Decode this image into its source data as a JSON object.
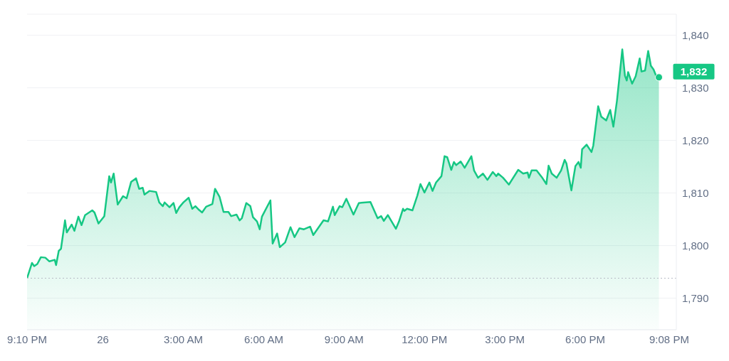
{
  "chart_data": {
    "type": "area",
    "x": [
      "--05-25T21:10",
      "--05-25T21:21",
      "--05-25T21:26",
      "--05-25T21:33",
      "--05-25T21:41",
      "--05-25T21:51",
      "--05-25T22:00",
      "--05-25T22:12",
      "--05-25T22:15",
      "--05-25T22:21",
      "--05-25T22:26",
      "--05-25T22:35",
      "--05-25T22:39",
      "--05-25T22:50",
      "--05-25T22:56",
      "--05-25T23:05",
      "--05-25T23:12",
      "--05-25T23:20",
      "--05-25T23:36",
      "--05-25T23:41",
      "--05-25T23:50",
      "--05-26T00:03",
      "--05-26T00:14",
      "--05-26T00:18",
      "--05-26T00:24",
      "--05-26T00:33",
      "--05-26T00:45",
      "--05-26T00:53",
      "--05-26T01:03",
      "--05-26T01:14",
      "--05-26T01:21",
      "--05-26T01:29",
      "--05-26T01:33",
      "--05-26T01:44",
      "--05-26T01:59",
      "--05-26T02:06",
      "--05-26T02:14",
      "--05-26T02:18",
      "--05-26T02:29",
      "--05-26T02:38",
      "--05-26T02:44",
      "--05-26T02:51",
      "--05-26T03:00",
      "--05-26T03:12",
      "--05-26T03:20",
      "--05-26T03:27",
      "--05-26T03:35",
      "--05-26T03:42",
      "--05-26T03:51",
      "--05-26T04:05",
      "--05-26T04:11",
      "--05-26T04:21",
      "--05-26T04:30",
      "--05-26T04:41",
      "--05-26T04:47",
      "--05-26T04:59",
      "--05-26T05:06",
      "--05-26T05:11",
      "--05-26T05:21",
      "--05-26T05:30",
      "--05-26T05:36",
      "--05-26T05:45",
      "--05-26T05:51",
      "--05-26T05:56",
      "--05-26T06:15",
      "--05-26T06:20",
      "--05-26T06:30",
      "--05-26T06:36",
      "--05-26T06:48",
      "--05-26T07:00",
      "--05-26T07:09",
      "--05-26T07:20",
      "--05-26T07:30",
      "--05-26T07:44",
      "--05-26T07:51",
      "--05-26T08:14",
      "--05-26T08:24",
      "--05-26T08:35",
      "--05-26T08:39",
      "--05-26T08:50",
      "--05-26T08:56",
      "--05-26T09:05",
      "--05-26T09:21",
      "--05-26T09:33",
      "--05-26T09:44",
      "--05-26T09:59",
      "--05-26T10:15",
      "--05-26T10:23",
      "--05-26T10:29",
      "--05-26T10:38",
      "--05-26T10:56",
      "--05-26T11:03",
      "--05-26T11:12",
      "--05-26T11:15",
      "--05-26T11:21",
      "--05-26T11:33",
      "--05-26T11:44",
      "--05-26T11:51",
      "--05-26T12:00",
      "--05-26T12:11",
      "--05-26T12:18",
      "--05-26T12:26",
      "--05-26T12:38",
      "--05-26T12:45",
      "--05-26T12:51",
      "--05-26T13:00",
      "--05-26T13:06",
      "--05-26T13:11",
      "--05-26T13:21",
      "--05-26T13:30",
      "--05-26T13:45",
      "--05-26T13:51",
      "--05-26T14:00",
      "--05-26T14:11",
      "--05-26T14:21",
      "--05-26T14:33",
      "--05-26T14:41",
      "--05-26T14:45",
      "--05-26T14:56",
      "--05-26T15:09",
      "--05-26T15:30",
      "--05-26T15:41",
      "--05-26T15:51",
      "--05-26T15:54",
      "--05-26T16:00",
      "--05-26T16:11",
      "--05-26T16:23",
      "--05-26T16:33",
      "--05-26T16:38",
      "--05-26T16:45",
      "--05-26T16:56",
      "--05-26T17:06",
      "--05-26T17:14",
      "--05-26T17:18",
      "--05-26T17:29",
      "--05-26T17:38",
      "--05-26T17:45",
      "--05-26T17:50",
      "--05-26T17:53",
      "--05-26T18:03",
      "--05-26T18:14",
      "--05-26T18:18",
      "--05-26T18:29",
      "--05-26T18:36",
      "--05-26T18:47",
      "--05-26T18:56",
      "--05-26T19:03",
      "--05-26T19:11",
      "--05-26T19:23",
      "--05-26T19:29",
      "--05-26T19:33",
      "--05-26T19:36",
      "--05-26T19:45",
      "--05-26T19:53",
      "--05-26T20:02",
      "--05-26T20:06",
      "--05-26T20:14",
      "--05-26T20:21",
      "--05-26T20:27",
      "--05-26T20:33",
      "--05-26T20:41",
      "--05-26T20:45"
    ],
    "series": [
      {
        "color": "#16c784",
        "values": [
          1793.8,
          1796.7,
          1796.1,
          1796.5,
          1797.8,
          1797.7,
          1797.0,
          1797.3,
          1796.3,
          1799.0,
          1799.4,
          1804.8,
          1802.5,
          1804.0,
          1802.8,
          1805.5,
          1803.9,
          1805.8,
          1806.7,
          1806.3,
          1804.2,
          1805.6,
          1813.2,
          1812.0,
          1813.7,
          1807.8,
          1809.4,
          1809.0,
          1812.1,
          1812.8,
          1810.8,
          1811.0,
          1809.7,
          1810.4,
          1810.2,
          1808.2,
          1807.5,
          1808.2,
          1807.3,
          1808.1,
          1806.2,
          1807.3,
          1808.2,
          1809.1,
          1807.0,
          1807.5,
          1806.8,
          1806.3,
          1807.4,
          1807.9,
          1810.8,
          1809.3,
          1806.4,
          1806.4,
          1805.6,
          1805.9,
          1804.8,
          1805.2,
          1808.1,
          1807.5,
          1805.4,
          1804.6,
          1803.1,
          1805.5,
          1808.6,
          1800.4,
          1802.3,
          1799.7,
          1800.6,
          1803.5,
          1801.6,
          1803.3,
          1803.1,
          1803.6,
          1802.0,
          1804.8,
          1804.6,
          1807.4,
          1805.8,
          1807.5,
          1807.3,
          1808.9,
          1805.9,
          1808.1,
          1808.2,
          1808.3,
          1805.2,
          1805.6,
          1804.7,
          1805.8,
          1803.2,
          1804.6,
          1807.0,
          1806.6,
          1807.0,
          1806.7,
          1809.5,
          1811.7,
          1810.1,
          1812.0,
          1810.4,
          1812.0,
          1813.2,
          1817.0,
          1816.8,
          1814.4,
          1815.9,
          1815.3,
          1816.0,
          1814.8,
          1817.0,
          1814.3,
          1812.9,
          1813.7,
          1812.5,
          1814.0,
          1813.2,
          1813.7,
          1812.9,
          1811.6,
          1814.4,
          1813.7,
          1813.9,
          1812.9,
          1814.3,
          1814.3,
          1813.0,
          1811.7,
          1815.2,
          1813.7,
          1812.9,
          1814.3,
          1816.3,
          1815.6,
          1810.5,
          1815.1,
          1815.9,
          1814.8,
          1818.3,
          1819.2,
          1817.8,
          1819.0,
          1826.5,
          1824.5,
          1823.8,
          1825.8,
          1822.6,
          1827.5,
          1837.3,
          1832.3,
          1831.4,
          1833.0,
          1830.8,
          1832.2,
          1835.6,
          1833.1,
          1833.3,
          1837.0,
          1834.2,
          1833.5,
          1831.8,
          1832.5
        ]
      }
    ],
    "xlim": [
      "--05-25T21:10",
      "--05-26T21:24"
    ],
    "xticks": [
      {
        "value": "--05-25T21:10",
        "label": "9:10 PM"
      },
      {
        "value": "--05-26T00:00",
        "label": "26"
      },
      {
        "value": "--05-26T03:00",
        "label": "3:00 AM"
      },
      {
        "value": "--05-26T06:00",
        "label": "6:00 AM"
      },
      {
        "value": "--05-26T09:00",
        "label": "9:00 AM"
      },
      {
        "value": "--05-26T12:00",
        "label": "12:00 PM"
      },
      {
        "value": "--05-26T15:00",
        "label": "3:00 PM"
      },
      {
        "value": "--05-26T18:00",
        "label": "6:00 PM"
      },
      {
        "value": "--05-26T21:08",
        "label": "9:08 PM"
      }
    ],
    "ylim": [
      1784,
      1844
    ],
    "yticks": [
      {
        "value": 1790,
        "label": "1,790"
      },
      {
        "value": 1800,
        "label": "1,800"
      },
      {
        "value": 1810,
        "label": "1,810"
      },
      {
        "value": 1820,
        "label": "1,820"
      },
      {
        "value": 1830,
        "label": "1,830"
      },
      {
        "value": 1840,
        "label": "1,840"
      }
    ],
    "grid": "y",
    "legend": false,
    "marker": "none",
    "ref_lines": [
      {
        "axis": "y",
        "value": 1793.8,
        "color": "#b8bcc6",
        "line_style": "dotted"
      }
    ],
    "annotations": [
      {
        "text": "1,832",
        "x": "--05-26T20:45",
        "y": 1832
      }
    ]
  }
}
